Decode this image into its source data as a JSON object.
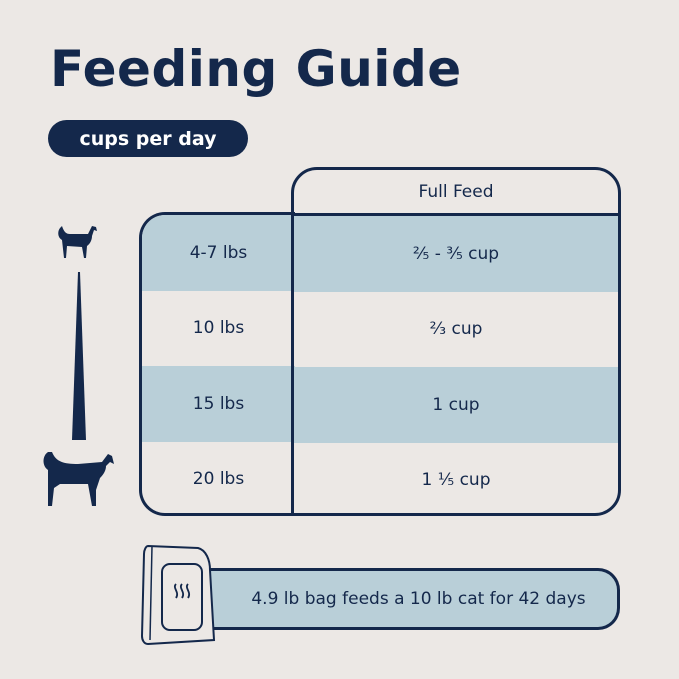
{
  "title": "Feeding Guide",
  "unit_pill": "cups per day",
  "table": {
    "column_header": "Full Feed",
    "rows": [
      {
        "weight": "4-7 lbs",
        "amount": "²⁄₅ - ³⁄₅ cup"
      },
      {
        "weight": "10 lbs",
        "amount": "²⁄₃ cup"
      },
      {
        "weight": "15 lbs",
        "amount": "1 cup"
      },
      {
        "weight": "20 lbs",
        "amount": "1 ¹⁄₅ cup"
      }
    ]
  },
  "bag_note": "4.9 lb bag feeds a 10 lb cat for 42 days",
  "colors": {
    "navy": "#14284b",
    "light_blue": "#b9cfd8",
    "background": "#ece8e5"
  },
  "icons": [
    "small-cat-icon",
    "size-scale-wedge-icon",
    "large-cat-icon",
    "food-bag-icon"
  ]
}
